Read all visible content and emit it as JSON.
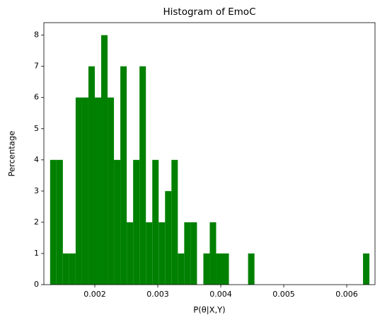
{
  "chart_data": {
    "type": "histogram",
    "title": "Histogram of EmoC",
    "xlabel": "P(θ|X,Y)",
    "ylabel": "Percentage",
    "color": "#008000",
    "bins": [
      0.00129,
      0.0013914,
      0.0014928,
      0.0015942,
      0.0016956,
      0.001797,
      0.0018984,
      0.0019998,
      0.0021012,
      0.0022026,
      0.002304,
      0.0024054,
      0.0025068,
      0.0026082,
      0.0027096,
      0.002811,
      0.0029124,
      0.0030138,
      0.0031152,
      0.0032166,
      0.003318,
      0.0034194,
      0.0035208,
      0.0036222,
      0.0037236,
      0.003825,
      0.0039264,
      0.0040278,
      0.0041292,
      0.0042306,
      0.004332,
      0.0044334,
      0.0045348,
      0.0046362,
      0.0047376,
      0.004839,
      0.0049404,
      0.0050418,
      0.0051432,
      0.0052446,
      0.005346,
      0.0054474,
      0.0055488,
      0.0056502,
      0.0057516,
      0.005853,
      0.0059544,
      0.0060558,
      0.0061572,
      0.0062586,
      0.00636
    ],
    "values": [
      4,
      4,
      1,
      1,
      6,
      6,
      7,
      6,
      8,
      6,
      4,
      7,
      2,
      4,
      7,
      2,
      4,
      2,
      3,
      4,
      1,
      2,
      2,
      0,
      1,
      2,
      1,
      1,
      0,
      0,
      0,
      1,
      0,
      0,
      0,
      0,
      0,
      0,
      0,
      0,
      0,
      0,
      0,
      0,
      0,
      0,
      0,
      0,
      0,
      1
    ],
    "xlim": [
      0.001191,
      0.006449
    ],
    "xticks": [
      0.002,
      0.003,
      0.004,
      0.005,
      0.006
    ],
    "ylim": [
      0,
      8.4
    ],
    "yticks": [
      0,
      1,
      2,
      3,
      4,
      5,
      6,
      7,
      8
    ]
  }
}
